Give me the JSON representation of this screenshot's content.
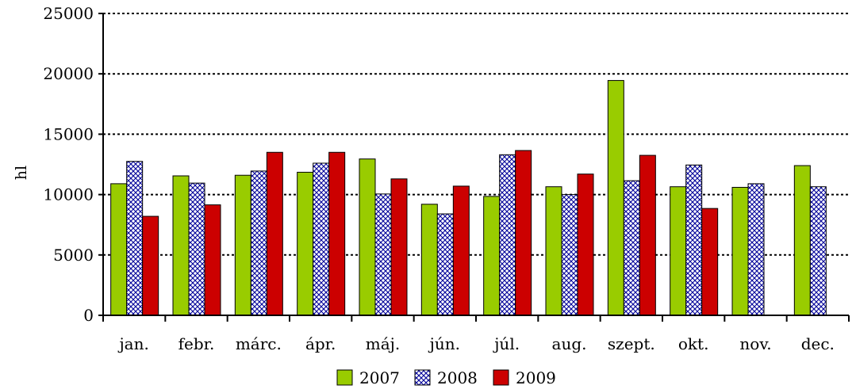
{
  "chart_data": {
    "type": "bar",
    "ylabel": "hl",
    "ylim": [
      0,
      25000
    ],
    "yticks": [
      0,
      5000,
      10000,
      15000,
      20000,
      25000
    ],
    "grid": "horizontal dotted",
    "legend_position": "bottom",
    "categories": [
      "jan.",
      "febr.",
      "márc.",
      "ápr.",
      "máj.",
      "jún.",
      "júl.",
      "aug.",
      "szept.",
      "okt.",
      "nov.",
      "dec."
    ],
    "series": [
      {
        "name": "2007",
        "color": "#99cc00",
        "pattern": "solid",
        "values": [
          10900,
          11550,
          11600,
          11850,
          12950,
          9200,
          9850,
          10650,
          19450,
          10650,
          10600,
          12400
        ]
      },
      {
        "name": "2008",
        "color": "#000099",
        "pattern": "crosshatch",
        "values": [
          12750,
          10950,
          11950,
          12600,
          10050,
          8400,
          13300,
          10000,
          11150,
          12450,
          10900,
          10650
        ]
      },
      {
        "name": "2009",
        "color": "#cc0000",
        "pattern": "solid",
        "values": [
          8200,
          9150,
          13500,
          13500,
          11300,
          10700,
          13650,
          11700,
          13250,
          8850,
          null,
          null
        ]
      }
    ]
  }
}
